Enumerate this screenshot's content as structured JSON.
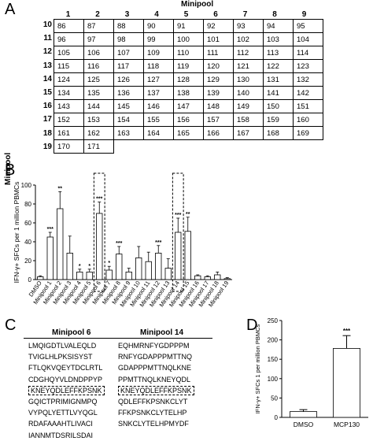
{
  "panelA": {
    "letter": "A",
    "col_title": "Minipool",
    "row_title": "Minipool",
    "col_headers": [
      "1",
      "2",
      "3",
      "4",
      "5",
      "6",
      "7",
      "8",
      "9"
    ],
    "row_headers": [
      "10",
      "11",
      "12",
      "13",
      "14",
      "15",
      "16",
      "17",
      "18",
      "19"
    ],
    "rows": [
      [
        "86",
        "87",
        "88",
        "90",
        "91",
        "92",
        "93",
        "94",
        "95"
      ],
      [
        "96",
        "97",
        "98",
        "99",
        "100",
        "101",
        "102",
        "103",
        "104"
      ],
      [
        "105",
        "106",
        "107",
        "109",
        "110",
        "111",
        "112",
        "113",
        "114"
      ],
      [
        "115",
        "116",
        "117",
        "118",
        "119",
        "120",
        "121",
        "122",
        "123"
      ],
      [
        "124",
        "125",
        "126",
        "127",
        "128",
        "129",
        "130",
        "131",
        "132"
      ],
      [
        "134",
        "135",
        "136",
        "137",
        "138",
        "139",
        "140",
        "141",
        "142"
      ],
      [
        "143",
        "144",
        "145",
        "146",
        "147",
        "148",
        "149",
        "150",
        "151"
      ],
      [
        "152",
        "153",
        "154",
        "155",
        "156",
        "157",
        "158",
        "159",
        "160"
      ],
      [
        "161",
        "162",
        "163",
        "164",
        "165",
        "166",
        "167",
        "168",
        "169"
      ],
      [
        "170",
        "171"
      ]
    ]
  },
  "panelB": {
    "letter": "B",
    "chart_data": {
      "type": "bar",
      "ylabel": "IFN-γ+ SFCs per 1 million PBMCs",
      "ylim": [
        0,
        100
      ],
      "yticks": [
        "0",
        "20",
        "40",
        "60",
        "80",
        "100"
      ],
      "categories": [
        "DMSO",
        "Minipool 1",
        "Minipool 2",
        "Minipool 3",
        "Minipool 4",
        "Minipool 5",
        "Minipool 6",
        "Minipool 7",
        "Minipool 8",
        "Minipool 9",
        "Minipool 10",
        "Minipool 11",
        "Minipool 12",
        "Minipool 13",
        "Minipool 14",
        "Minipool 15",
        "Minipool 16",
        "Minipool 17",
        "Minipool 18",
        "Minipool 19"
      ],
      "values": [
        3,
        45,
        75,
        28,
        8,
        8,
        70,
        10,
        27,
        8,
        23,
        19,
        28,
        12,
        50,
        51,
        4,
        3,
        5,
        1
      ],
      "errors": [
        1,
        5,
        18,
        18,
        3,
        3,
        12,
        4,
        8,
        4,
        12,
        10,
        8,
        10,
        15,
        15,
        1,
        1,
        3,
        1
      ],
      "annotations": [
        "",
        "***",
        "**",
        "",
        "*",
        "*",
        "***",
        "*",
        "***",
        "",
        "",
        "",
        "***",
        "",
        "***",
        "**",
        "",
        "",
        "",
        ""
      ],
      "highlighted": [
        "Minipool 6",
        "Minipool 14"
      ]
    }
  },
  "panelC": {
    "letter": "C",
    "col1_header": "Minipool 6",
    "col2_header": "Minipool 14",
    "col1": [
      "LMQIGDTLVALEQLD",
      "TVIGLHLPKSISYST",
      "FTLQKVQEYTDCLRTL",
      "CDGHQYVLDNDPPYP",
      "KNEYQDLEFFKPSNK",
      "GQICTPRIMIGNMPQ",
      "VYPQLYETTLVYQGL",
      "RDAFAAAHTLIVACI",
      "IANNMTDSRILSDAI"
    ],
    "col2": [
      "EQHMRNFYGDPPPM",
      "RNFYGDAPPPMTTNQ",
      "GDAPPPMTTNQLKNE",
      "PPMTTNQLKNEYQDL",
      "KNEYQDLEFFKPSNK",
      "QDLEFFKPSNKCLYT",
      "FFKPSNKCLYTELHP",
      "SNKCLYTELHPMYDF"
    ],
    "boxed_index_col1": 4,
    "boxed_index_col2": 4
  },
  "panelD": {
    "letter": "D",
    "chart_data": {
      "type": "bar",
      "ylabel": "IFN-γ+ SFCs 1 per million PBMCs",
      "ylim": [
        0,
        250
      ],
      "yticks": [
        "0",
        "50",
        "100",
        "150",
        "200",
        "250"
      ],
      "categories": [
        "DMSO",
        "MCP130"
      ],
      "values": [
        15,
        178
      ],
      "errors": [
        5,
        33
      ],
      "annotations": [
        "",
        "***"
      ]
    }
  }
}
